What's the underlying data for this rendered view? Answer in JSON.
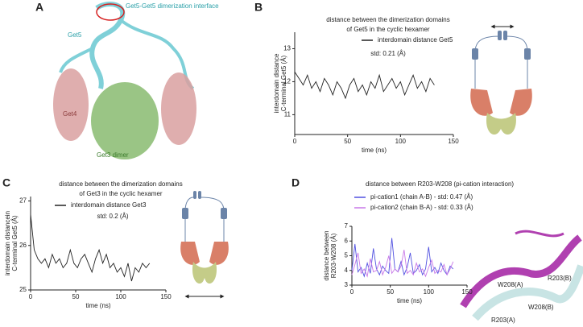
{
  "panel_labels": [
    "A",
    "B",
    "C",
    "D"
  ],
  "structure_A": {
    "labels": [
      "Get5-Get5 dimerization interface",
      "Get5",
      "Get4",
      "Get3 dimer"
    ]
  },
  "structure_D": {
    "labels": [
      "W208(A)",
      "R203(B)",
      "R203(A)",
      "W208(B)"
    ]
  },
  "chart_data": [
    {
      "type": "line",
      "title": [
        "distance between the dimerization domains",
        "of Get5 in the cyclic hexamer"
      ],
      "xlabel": "time (ns)",
      "ylabel": [
        "interdomain distance",
        "C-terminal Get5 (Å)"
      ],
      "annotation": "std: 0.21 (Å)",
      "x": [
        0,
        4,
        8,
        12,
        16,
        20,
        24,
        28,
        32,
        36,
        40,
        44,
        48,
        52,
        56,
        60,
        64,
        68,
        72,
        76,
        80,
        84,
        88,
        92,
        96,
        100,
        104,
        108,
        112,
        116,
        120,
        124,
        128,
        132
      ],
      "series": [
        {
          "name": "interdomain distance Get5",
          "color": "#222222",
          "values": [
            12.3,
            12.1,
            11.9,
            12.2,
            11.8,
            12.0,
            11.7,
            12.1,
            11.9,
            11.6,
            12.0,
            11.8,
            11.5,
            11.9,
            12.1,
            11.7,
            11.9,
            11.6,
            12.0,
            11.8,
            12.2,
            11.7,
            11.9,
            12.1,
            11.8,
            12.0,
            11.6,
            11.9,
            12.2,
            11.8,
            12.0,
            11.7,
            12.1,
            11.9
          ]
        }
      ],
      "xlim": [
        0,
        150
      ],
      "xticks": [
        0,
        50,
        100,
        150
      ],
      "ylim": [
        10.4,
        13.5
      ],
      "yticks": [
        11,
        12,
        13
      ]
    },
    {
      "type": "line",
      "title": [
        "distance between the dimerization domains",
        "of Get3 in the cyclic hexamer"
      ],
      "xlabel": "time (ns)",
      "ylabel": [
        "interdomain distancein",
        "C-terminal Get5 (Å)"
      ],
      "annotation": "std: 0.2 (Å)",
      "x": [
        0,
        4,
        8,
        12,
        16,
        20,
        24,
        28,
        32,
        36,
        40,
        44,
        48,
        52,
        56,
        60,
        64,
        68,
        72,
        76,
        80,
        84,
        88,
        92,
        96,
        100,
        104,
        108,
        112,
        116,
        120,
        124,
        128,
        132
      ],
      "series": [
        {
          "name": "interdomain distance Get3",
          "color": "#222222",
          "values": [
            26.7,
            25.9,
            25.7,
            25.6,
            25.7,
            25.5,
            25.8,
            25.6,
            25.7,
            25.5,
            25.6,
            25.9,
            25.6,
            25.5,
            25.7,
            25.8,
            25.6,
            25.4,
            25.7,
            25.9,
            25.6,
            25.8,
            25.5,
            25.6,
            25.4,
            25.5,
            25.3,
            25.6,
            25.2,
            25.5,
            25.4,
            25.6,
            25.5,
            25.6
          ]
        }
      ],
      "xlim": [
        0,
        150
      ],
      "xticks": [
        0,
        50,
        100,
        150
      ],
      "ylim": [
        25,
        27.1
      ],
      "yticks": [
        25,
        26,
        27
      ]
    },
    {
      "type": "line",
      "title": [
        "distance between R203-W208 (pi-cation interaction)"
      ],
      "xlabel": "time (ns)",
      "ylabel": [
        "distance between",
        "R203-W208 (Å)"
      ],
      "x": [
        0,
        4,
        8,
        12,
        16,
        20,
        24,
        28,
        32,
        36,
        40,
        44,
        48,
        52,
        56,
        60,
        64,
        68,
        72,
        76,
        80,
        84,
        88,
        92,
        96,
        100,
        104,
        108,
        112,
        116,
        120,
        124,
        128,
        132
      ],
      "series": [
        {
          "name": "pi-cation1 (chain A-B) - std: 0.47 (Å)",
          "color": "#5050e0",
          "values": [
            4.0,
            5.8,
            3.9,
            4.2,
            3.6,
            4.5,
            3.8,
            5.5,
            4.1,
            3.7,
            4.3,
            4.0,
            3.8,
            6.2,
            4.1,
            3.9,
            4.6,
            3.7,
            4.2,
            5.2,
            3.8,
            4.0,
            4.4,
            3.7,
            4.1,
            5.6,
            3.9,
            4.2,
            3.8,
            4.5,
            4.0,
            3.7,
            4.3,
            4.1
          ]
        },
        {
          "name": "pi-cation2 (chain B-A) - std: 0.33 (Å)",
          "color": "#c878e8",
          "values": [
            3.7,
            4.4,
            5.2,
            3.8,
            4.1,
            3.6,
            4.8,
            3.9,
            4.0,
            4.6,
            3.7,
            4.2,
            5.0,
            3.8,
            4.1,
            3.9,
            4.3,
            5.4,
            3.8,
            4.0,
            3.7,
            4.5,
            3.9,
            4.1,
            3.6,
            4.2,
            4.7,
            3.8,
            4.0,
            3.9,
            4.4,
            3.7,
            4.1,
            4.6
          ]
        }
      ],
      "xlim": [
        0,
        150
      ],
      "xticks": [
        0,
        50,
        100,
        150
      ],
      "ylim": [
        3,
        7
      ],
      "yticks": [
        3,
        4,
        5,
        6,
        7
      ]
    }
  ]
}
